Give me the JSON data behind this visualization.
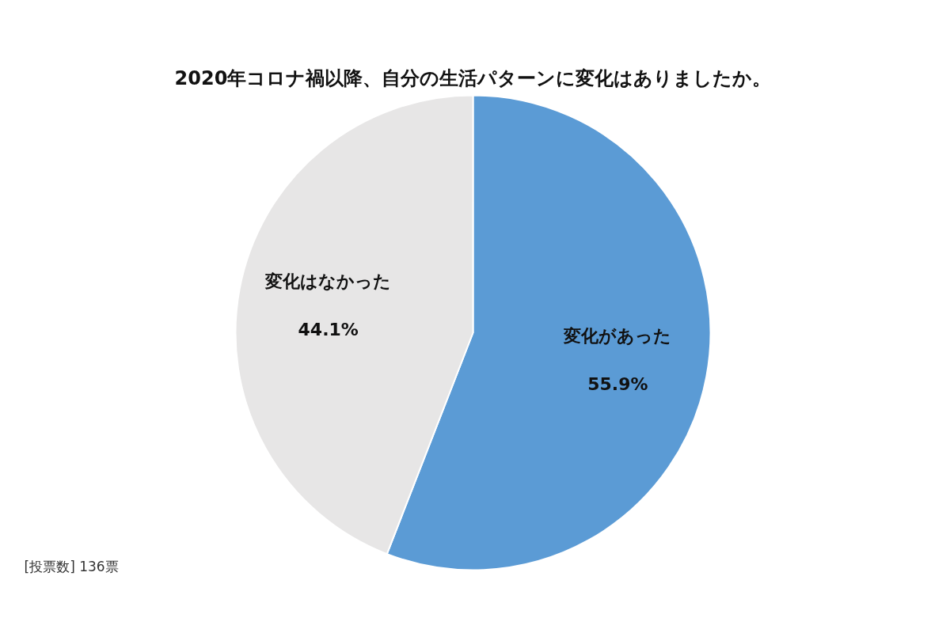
{
  "chart_data": {
    "type": "pie",
    "title": "2020年コロナ禍以降、自分の生活パターンに変化はありましたか。",
    "categories": [
      "変化があった",
      "変化はなかった"
    ],
    "values": [
      55.9,
      44.1
    ],
    "colors": [
      "#5b9bd5",
      "#e7e6e6"
    ],
    "value_labels": [
      "55.9%",
      "44.1%"
    ],
    "annotations": [
      "[投票数] 136票"
    ]
  }
}
